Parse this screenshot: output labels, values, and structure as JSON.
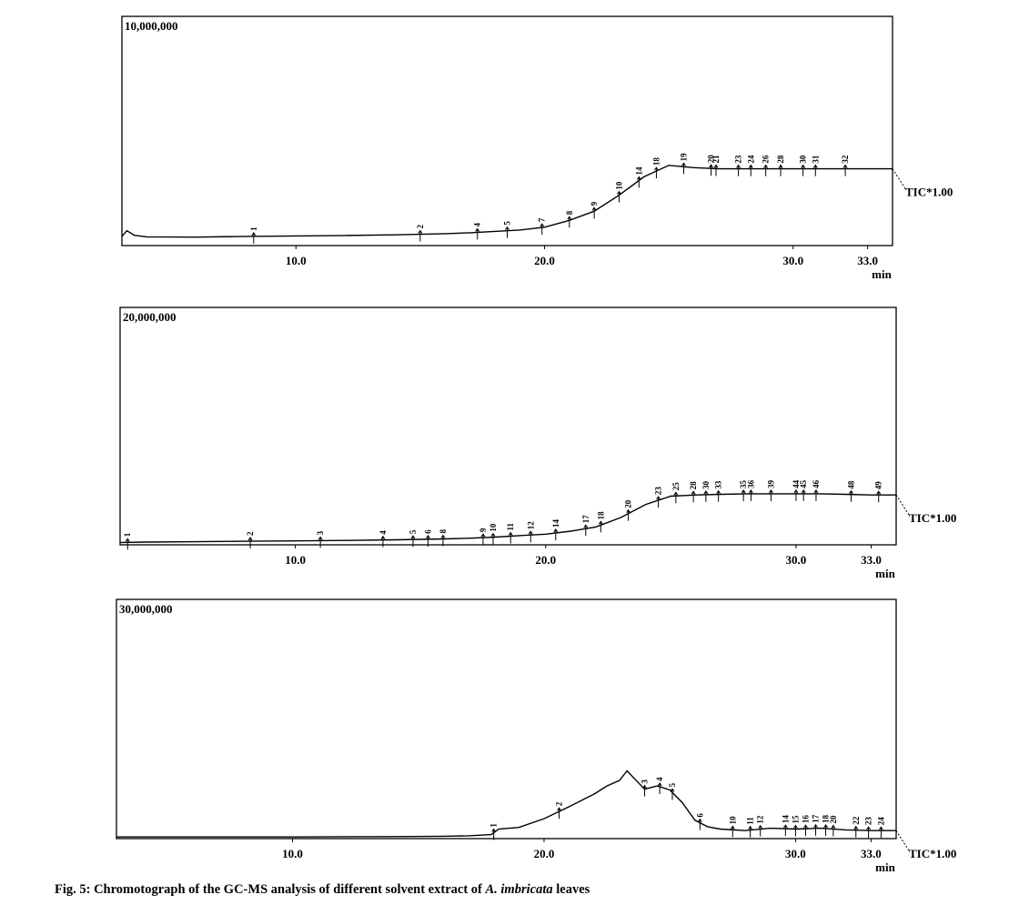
{
  "caption": {
    "prefix": "Fig. 5: Chromotograph of the GC-MS analysis of different solvent extract of ",
    "species": "A. imbricata",
    "suffix": " leaves"
  },
  "chart_data": [
    {
      "type": "line",
      "ymax_label": "10,000,000",
      "trace_label": "TIC*1.00",
      "xunit": "min",
      "xticks": [
        "10.0",
        "20.0",
        "30.0",
        "33.0"
      ],
      "xlim": [
        3.0,
        34.0
      ],
      "ylim": [
        0,
        10000000
      ],
      "x": [
        3.0,
        3.2,
        3.5,
        4,
        6,
        8,
        10,
        12,
        14,
        16,
        17,
        18,
        19,
        20,
        21,
        22,
        23,
        24,
        25,
        26,
        27,
        28,
        29,
        30,
        31,
        32,
        33,
        34
      ],
      "y": [
        400000,
        650000,
        450000,
        380000,
        370000,
        400000,
        420000,
        440000,
        470000,
        520000,
        560000,
        620000,
        680000,
        800000,
        1100000,
        1500000,
        2200000,
        3000000,
        3500000,
        3400000,
        3350000,
        3350000,
        3350000,
        3350000,
        3350000,
        3350000,
        3350000,
        3350000
      ],
      "peak_labels": [
        {
          "x": 8.3,
          "label": "1"
        },
        {
          "x": 15.0,
          "label": "2"
        },
        {
          "x": 17.3,
          "label": "4"
        },
        {
          "x": 18.5,
          "label": "5"
        },
        {
          "x": 19.9,
          "label": "7"
        },
        {
          "x": 21.0,
          "label": "8"
        },
        {
          "x": 22.0,
          "label": "9"
        },
        {
          "x": 23.0,
          "label": "10"
        },
        {
          "x": 23.8,
          "label": "14"
        },
        {
          "x": 24.5,
          "label": "18"
        },
        {
          "x": 25.6,
          "label": "19"
        },
        {
          "x": 26.7,
          "label": "20"
        },
        {
          "x": 26.9,
          "label": "21"
        },
        {
          "x": 27.8,
          "label": "23"
        },
        {
          "x": 28.3,
          "label": "24"
        },
        {
          "x": 28.9,
          "label": "26"
        },
        {
          "x": 29.5,
          "label": "28"
        },
        {
          "x": 30.4,
          "label": "30"
        },
        {
          "x": 30.9,
          "label": "31"
        },
        {
          "x": 32.1,
          "label": "32"
        }
      ]
    },
    {
      "type": "line",
      "ymax_label": "20,000,000",
      "trace_label": "TIC*1.00",
      "xunit": "min",
      "xticks": [
        "10.0",
        "20.0",
        "30.0",
        "33.0"
      ],
      "xlim": [
        3.0,
        34.0
      ],
      "ylim": [
        0,
        20000000
      ],
      "x": [
        3.0,
        4,
        6,
        8,
        10,
        12,
        14,
        16,
        17,
        18,
        19,
        20,
        21,
        22,
        23,
        24,
        25,
        26,
        27,
        28,
        29,
        30,
        31,
        32,
        33,
        34
      ],
      "y": [
        200000,
        230000,
        260000,
        300000,
        330000,
        370000,
        420000,
        500000,
        560000,
        650000,
        780000,
        900000,
        1150000,
        1500000,
        2300000,
        3400000,
        4100000,
        4200000,
        4250000,
        4300000,
        4300000,
        4300000,
        4300000,
        4250000,
        4200000,
        4200000
      ],
      "peak_labels": [
        {
          "x": 3.3,
          "label": "1"
        },
        {
          "x": 8.2,
          "label": "2"
        },
        {
          "x": 11.0,
          "label": "3"
        },
        {
          "x": 13.5,
          "label": "4"
        },
        {
          "x": 14.7,
          "label": "5"
        },
        {
          "x": 15.3,
          "label": "6"
        },
        {
          "x": 15.9,
          "label": "8"
        },
        {
          "x": 17.5,
          "label": "9"
        },
        {
          "x": 17.9,
          "label": "10"
        },
        {
          "x": 18.6,
          "label": "11"
        },
        {
          "x": 19.4,
          "label": "12"
        },
        {
          "x": 20.4,
          "label": "14"
        },
        {
          "x": 21.6,
          "label": "17"
        },
        {
          "x": 22.2,
          "label": "18"
        },
        {
          "x": 23.3,
          "label": "20"
        },
        {
          "x": 24.5,
          "label": "23"
        },
        {
          "x": 25.2,
          "label": "25"
        },
        {
          "x": 25.9,
          "label": "28"
        },
        {
          "x": 26.4,
          "label": "30"
        },
        {
          "x": 26.9,
          "label": "33"
        },
        {
          "x": 27.9,
          "label": "35"
        },
        {
          "x": 28.2,
          "label": "36"
        },
        {
          "x": 29.0,
          "label": "39"
        },
        {
          "x": 30.0,
          "label": "44"
        },
        {
          "x": 30.3,
          "label": "45"
        },
        {
          "x": 30.8,
          "label": "46"
        },
        {
          "x": 32.2,
          "label": "48"
        },
        {
          "x": 33.3,
          "label": "49"
        }
      ]
    },
    {
      "type": "line",
      "ymax_label": "30,000,000",
      "trace_label": "TIC*1.00",
      "xunit": "min",
      "xticks": [
        "10.0",
        "20.0",
        "30.0",
        "33.0"
      ],
      "xlim": [
        3.0,
        34.0
      ],
      "ylim": [
        0,
        30000000
      ],
      "x": [
        3.0,
        6,
        10,
        14,
        16,
        17,
        17.9,
        18.2,
        19,
        20,
        21,
        22,
        22.5,
        23,
        23.3,
        23.6,
        24,
        24.5,
        25,
        25.5,
        26,
        26.5,
        27,
        28,
        29,
        30,
        31,
        32,
        33,
        34
      ],
      "y": [
        200000,
        200000,
        200000,
        250000,
        300000,
        350000,
        500000,
        1200000,
        1400000,
        2500000,
        4000000,
        5600000,
        6600000,
        7300000,
        8500000,
        7500000,
        6200000,
        6600000,
        6100000,
        4500000,
        2300000,
        1500000,
        1200000,
        1000000,
        1300000,
        1200000,
        1300000,
        1100000,
        1000000,
        1000000
      ],
      "peak_labels": [
        {
          "x": 18.0,
          "label": "1"
        },
        {
          "x": 20.6,
          "label": "2"
        },
        {
          "x": 24.0,
          "label": "3"
        },
        {
          "x": 24.6,
          "label": "4"
        },
        {
          "x": 25.1,
          "label": "5"
        },
        {
          "x": 26.2,
          "label": "6"
        },
        {
          "x": 27.5,
          "label": "10"
        },
        {
          "x": 28.2,
          "label": "11"
        },
        {
          "x": 28.6,
          "label": "12"
        },
        {
          "x": 29.6,
          "label": "14"
        },
        {
          "x": 30.0,
          "label": "15"
        },
        {
          "x": 30.4,
          "label": "16"
        },
        {
          "x": 30.8,
          "label": "17"
        },
        {
          "x": 31.2,
          "label": "18"
        },
        {
          "x": 31.5,
          "label": "20"
        },
        {
          "x": 32.4,
          "label": "22"
        },
        {
          "x": 32.9,
          "label": "23"
        },
        {
          "x": 33.4,
          "label": "24"
        }
      ]
    }
  ]
}
